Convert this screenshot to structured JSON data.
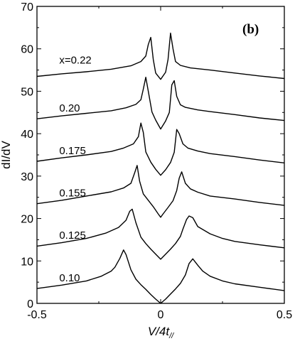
{
  "chart_data": {
    "type": "line",
    "panel_label": "(b)",
    "xlabel": "V/4t",
    "xlabel_subscript": "//",
    "ylabel": "dI/dV",
    "xlim": [
      -0.5,
      0.5
    ],
    "ylim": [
      0,
      70
    ],
    "xticks": [
      {
        "value": -0.5,
        "label": "-0.5"
      },
      {
        "value": 0,
        "label": "0"
      },
      {
        "value": 0.5,
        "label": "0.5"
      }
    ],
    "yticks": [
      {
        "value": 0,
        "label": "0"
      },
      {
        "value": 10,
        "label": "10"
      },
      {
        "value": 20,
        "label": "20"
      },
      {
        "value": 30,
        "label": "30"
      },
      {
        "value": 40,
        "label": "40"
      },
      {
        "value": 50,
        "label": "50"
      },
      {
        "value": 60,
        "label": "60"
      },
      {
        "value": 70,
        "label": "70"
      }
    ],
    "grid": false,
    "line_color": "#000000",
    "series": [
      {
        "label": "0.10",
        "label_pos": {
          "x": -0.41,
          "y": 5.2
        },
        "x": [
          -0.5,
          -0.4,
          -0.3,
          -0.24,
          -0.2,
          -0.185,
          -0.165,
          -0.15,
          -0.14,
          -0.12,
          -0.1,
          -0.08,
          -0.06,
          -0.04,
          -0.02,
          0,
          0.02,
          0.04,
          0.06,
          0.08,
          0.1,
          0.115,
          0.13,
          0.15,
          0.17,
          0.2,
          0.25,
          0.3,
          0.4,
          0.5
        ],
        "y": [
          3.5,
          4.3,
          5.3,
          6.4,
          7.6,
          8.5,
          10.6,
          12.6,
          11.5,
          7.9,
          5.7,
          4.4,
          3.3,
          2.1,
          1.0,
          0.0,
          1.0,
          2.2,
          3.4,
          4.7,
          6.7,
          9.4,
          10.5,
          9.0,
          7.6,
          6.4,
          5.3,
          4.6,
          3.8,
          3.0
        ]
      },
      {
        "label": "0.125",
        "label_pos": {
          "x": -0.41,
          "y": 15.2
        },
        "x": [
          -0.5,
          -0.4,
          -0.3,
          -0.22,
          -0.17,
          -0.14,
          -0.125,
          -0.115,
          -0.1,
          -0.08,
          -0.06,
          -0.04,
          -0.02,
          0,
          0.02,
          0.04,
          0.06,
          0.08,
          0.09,
          0.105,
          0.115,
          0.13,
          0.15,
          0.2,
          0.25,
          0.3,
          0.4,
          0.5
        ],
        "y": [
          13.5,
          14.3,
          15.3,
          16.6,
          17.9,
          19.6,
          21.7,
          22.2,
          19.0,
          15.6,
          14.1,
          12.8,
          11.6,
          10.4,
          11.6,
          12.8,
          14.1,
          15.8,
          17.5,
          19.8,
          20.6,
          20.2,
          18.1,
          16.4,
          15.3,
          14.6,
          13.8,
          13.1
        ]
      },
      {
        "label": "0.155",
        "label_pos": {
          "x": -0.41,
          "y": 25.2
        },
        "x": [
          -0.5,
          -0.4,
          -0.3,
          -0.2,
          -0.15,
          -0.12,
          -0.105,
          -0.095,
          -0.085,
          -0.07,
          -0.05,
          -0.03,
          -0.01,
          0,
          0.01,
          0.03,
          0.05,
          0.065,
          0.075,
          0.085,
          0.1,
          0.12,
          0.15,
          0.2,
          0.3,
          0.4,
          0.5
        ],
        "y": [
          23.5,
          24.3,
          25.3,
          26.3,
          27.2,
          28.3,
          30.8,
          32.5,
          28.8,
          25.8,
          24.3,
          22.8,
          21.1,
          20.3,
          21.1,
          22.6,
          24.2,
          26.6,
          29.5,
          31.0,
          28.3,
          27.0,
          26.2,
          25.3,
          24.6,
          23.8,
          23.1
        ]
      },
      {
        "label": "0.175",
        "label_pos": {
          "x": -0.41,
          "y": 35.2
        },
        "x": [
          -0.5,
          -0.4,
          -0.3,
          -0.2,
          -0.15,
          -0.11,
          -0.09,
          -0.08,
          -0.07,
          -0.06,
          -0.04,
          -0.02,
          0,
          0.02,
          0.04,
          0.055,
          0.065,
          0.075,
          0.09,
          0.11,
          0.15,
          0.2,
          0.3,
          0.4,
          0.5
        ],
        "y": [
          33.5,
          34.3,
          35.0,
          35.8,
          36.6,
          37.6,
          39.3,
          42.5,
          40.3,
          35.7,
          33.3,
          31.6,
          30.2,
          31.5,
          33.2,
          35.6,
          41.0,
          40.0,
          37.6,
          36.6,
          35.9,
          35.3,
          34.6,
          33.8,
          33.1
        ]
      },
      {
        "label": "0.20",
        "label_pos": {
          "x": -0.41,
          "y": 45.2
        },
        "x": [
          -0.5,
          -0.4,
          -0.3,
          -0.2,
          -0.14,
          -0.1,
          -0.08,
          -0.07,
          -0.06,
          -0.05,
          -0.035,
          -0.02,
          0,
          0.02,
          0.035,
          0.045,
          0.055,
          0.065,
          0.08,
          0.1,
          0.15,
          0.2,
          0.3,
          0.4,
          0.5
        ],
        "y": [
          43.5,
          44.2,
          44.8,
          45.4,
          46.1,
          46.9,
          48.0,
          50.5,
          53.3,
          50.0,
          45.1,
          43.2,
          41.1,
          43.0,
          45.0,
          51.5,
          52.5,
          48.8,
          46.8,
          46.2,
          45.6,
          45.2,
          44.5,
          43.7,
          43.1
        ]
      },
      {
        "label": "x=0.22",
        "label_pos": {
          "x": -0.41,
          "y": 56.5
        },
        "x": [
          -0.5,
          -0.4,
          -0.3,
          -0.2,
          -0.12,
          -0.08,
          -0.06,
          -0.05,
          -0.04,
          -0.03,
          -0.02,
          0,
          0.02,
          0.03,
          0.04,
          0.05,
          0.06,
          0.08,
          0.12,
          0.2,
          0.3,
          0.4,
          0.5
        ],
        "y": [
          53.5,
          54.1,
          54.6,
          55.2,
          56.0,
          57.0,
          58.3,
          61.0,
          62.7,
          57.5,
          54.3,
          52.8,
          54.5,
          57.5,
          63.7,
          60.0,
          57.0,
          56.1,
          55.5,
          55.0,
          54.3,
          53.6,
          53.0
        ]
      }
    ]
  }
}
